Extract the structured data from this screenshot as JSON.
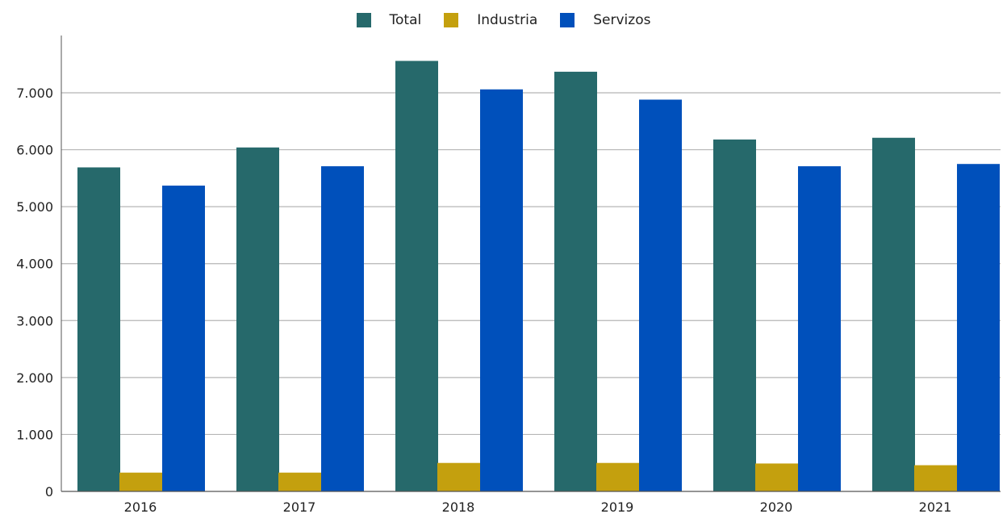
{
  "chart_data": {
    "type": "bar",
    "categories": [
      "2016",
      "2017",
      "2018",
      "2019",
      "2020",
      "2021"
    ],
    "series": [
      {
        "name": "Total",
        "color": "#26696b",
        "values": [
          5690,
          6040,
          7560,
          7370,
          6180,
          6210
        ]
      },
      {
        "name": "Industria",
        "color": "#c4a00e",
        "values": [
          330,
          330,
          500,
          500,
          490,
          460
        ]
      },
      {
        "name": "Servizos",
        "color": "#0050bb",
        "values": [
          5370,
          5710,
          7060,
          6880,
          5710,
          5750
        ]
      }
    ],
    "yticks": [
      "0",
      "1.000",
      "2.000",
      "3.000",
      "4.000",
      "5.000",
      "6.000",
      "7.000"
    ],
    "ylim": [
      0,
      7800
    ],
    "grid": true,
    "legend_position": "top-center",
    "title": "",
    "xlabel": "",
    "ylabel": ""
  }
}
